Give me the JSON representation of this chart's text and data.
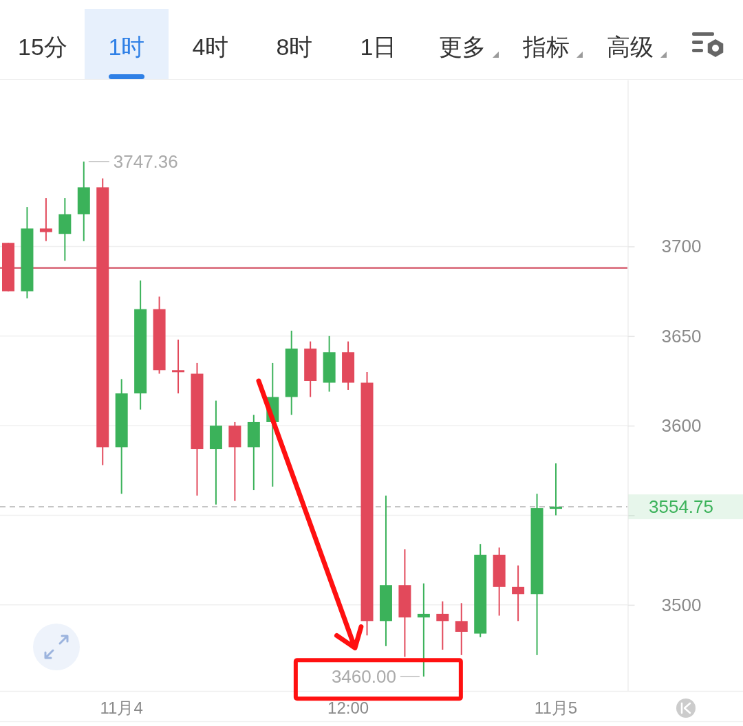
{
  "chart_data": {
    "type": "candlestick",
    "annotations": [
      "15分",
      "1时",
      "4时",
      "8时",
      "1日",
      "更多",
      "指标",
      "高级",
      "3747.36",
      "3460.00"
    ],
    "categories": [
      null,
      null,
      null,
      null,
      null,
      null,
      "11月4",
      null,
      null,
      null,
      null,
      null,
      null,
      null,
      null,
      null,
      null,
      null,
      "12:00",
      null,
      null,
      null,
      null,
      null,
      null,
      null,
      null,
      null,
      null,
      "11月5"
    ],
    "ohlc": [
      [
        3702,
        3702,
        3675,
        3675
      ],
      [
        3675,
        3722,
        3671,
        3710
      ],
      [
        3710,
        3727,
        3703,
        3708
      ],
      [
        3707,
        3727,
        3692,
        3718
      ],
      [
        3718,
        3747.36,
        3703,
        3733
      ],
      [
        3733,
        3738,
        3578,
        3588
      ],
      [
        3588,
        3626,
        3562,
        3618
      ],
      [
        3618,
        3681,
        3609,
        3665
      ],
      [
        3665,
        3672,
        3629,
        3631
      ],
      [
        3631,
        3648,
        3618,
        3630
      ],
      [
        3629,
        3635,
        3561,
        3587
      ],
      [
        3587,
        3614,
        3556,
        3600
      ],
      [
        3600,
        3602,
        3558,
        3588
      ],
      [
        3588,
        3606,
        3564,
        3602
      ],
      [
        3602,
        3635,
        3566,
        3616
      ],
      [
        3616,
        3653,
        3606,
        3643
      ],
      [
        3643,
        3647,
        3616,
        3625
      ],
      [
        3624,
        3650,
        3619,
        3641
      ],
      [
        3641,
        3647,
        3620,
        3624
      ],
      [
        3624,
        3630,
        3483,
        3491
      ],
      [
        3491,
        3561,
        3477,
        3511
      ],
      [
        3511,
        3531,
        3471,
        3493
      ],
      [
        3493,
        3512,
        3460,
        3495
      ],
      [
        3495,
        3502,
        3475,
        3491
      ],
      [
        3491,
        3501,
        3472,
        3485
      ],
      [
        3484,
        3534,
        3482,
        3528
      ],
      [
        3528,
        3532,
        3494,
        3510
      ],
      [
        3510,
        3522,
        3491,
        3506
      ],
      [
        3506,
        3562,
        3472,
        3554
      ],
      [
        3554,
        3579,
        3550,
        3554.75
      ]
    ],
    "colors": [
      "#e2495b",
      "#3bb25a",
      "#e2495b",
      "#3bb25a",
      "#3bb25a",
      "#e2495b",
      "#3bb25a",
      "#3bb25a",
      "#e2495b",
      "#e2495b",
      "#e2495b",
      "#3bb25a",
      "#e2495b",
      "#3bb25a",
      "#3bb25a",
      "#3bb25a",
      "#e2495b",
      "#3bb25a",
      "#e2495b",
      "#e2495b",
      "#3bb25a",
      "#e2495b",
      "#3bb25a",
      "#e2495b",
      "#e2495b",
      "#3bb25a",
      "#e2495b",
      "#e2495b",
      "#3bb25a",
      "#3bb25a"
    ],
    "ylim": [
      3452,
      3793
    ],
    "yticks": [
      3500,
      {
        "value": 3550,
        "label": null
      },
      3600,
      3650,
      3700
    ],
    "grid": "y",
    "ref_lines": [
      {
        "axis": "y",
        "value": 3688,
        "color": "#cf4458"
      },
      {
        "axis": "y",
        "value": 3554.75,
        "label": "3554.75",
        "color": "#b8b8b8",
        "line_style": "dashed"
      }
    ]
  }
}
